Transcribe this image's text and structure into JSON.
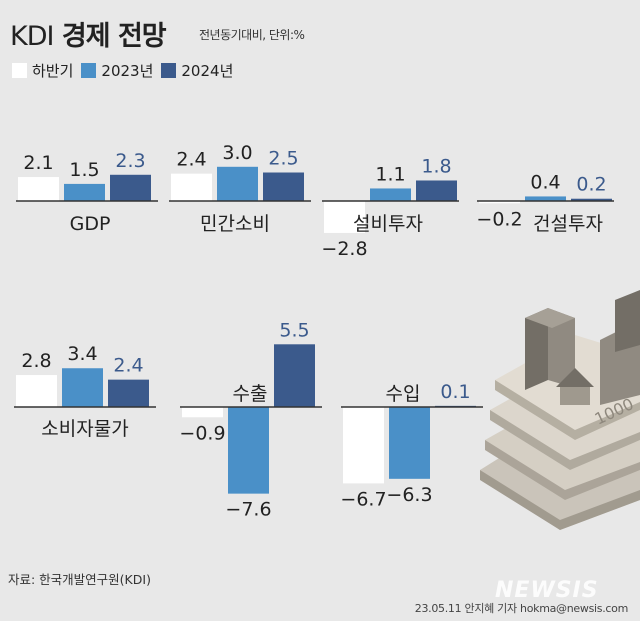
{
  "title": {
    "prefix": "KDI",
    "main": "경제 전망"
  },
  "subtitle": "전년동기대비, 단위:%",
  "legend": [
    {
      "label": "하반기",
      "color": "#ffffff"
    },
    {
      "label": "2023년",
      "color": "#4a90c8"
    },
    {
      "label": "2024년",
      "color": "#3b5a8c"
    }
  ],
  "colors": {
    "h2": "#ffffff",
    "y2023": "#4a90c8",
    "y2024": "#3b5a8c",
    "label_2024": "#3b5a8c",
    "background": "#e8e8e8"
  },
  "chart_data": {
    "type": "bar",
    "series": [
      {
        "name": "하반기"
      },
      {
        "name": "2023년"
      },
      {
        "name": "2024년"
      }
    ],
    "panels": [
      {
        "category": "GDP",
        "values": [
          2.1,
          1.5,
          2.3
        ]
      },
      {
        "category": "민간소비",
        "values": [
          2.4,
          3.0,
          2.5
        ]
      },
      {
        "category": "설비투자",
        "values": [
          -2.8,
          1.1,
          1.8
        ]
      },
      {
        "category": "건설투자",
        "values": [
          -0.2,
          0.4,
          0.2
        ]
      },
      {
        "category": "소비자물가",
        "values": [
          2.8,
          3.4,
          2.4
        ]
      },
      {
        "category": "수출",
        "values": [
          -0.9,
          -7.6,
          5.5
        ]
      },
      {
        "category": "수입",
        "values": [
          -6.7,
          -6.3,
          0.1
        ]
      }
    ]
  },
  "source": "자료: 한국개발연구원(KDI)",
  "credit": "23.05.11 안지혜 기자 hokma@newsis.com",
  "logo": "NEWSIS",
  "illustration": {
    "icon": "building-money-stack-icon",
    "banknote_text": "1000"
  }
}
